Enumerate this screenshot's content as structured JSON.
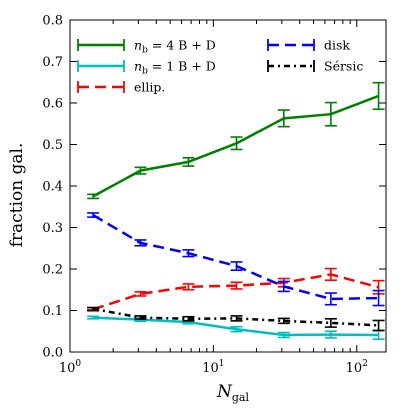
{
  "chart_data": {
    "type": "line",
    "ylabel": "fraction gal.",
    "xlabel": "N",
    "xlabel_sub": "gal",
    "xscale": "log",
    "xlim": [
      1,
      160
    ],
    "ylim": [
      0.0,
      0.8
    ],
    "xticks": [
      {
        "value": 1,
        "base": "10",
        "exp": "0"
      },
      {
        "value": 10,
        "base": "10",
        "exp": "1"
      },
      {
        "value": 100,
        "base": "10",
        "exp": "2"
      }
    ],
    "yticks": [
      "0.0",
      "0.1",
      "0.2",
      "0.3",
      "0.4",
      "0.5",
      "0.6",
      "0.7",
      "0.8"
    ],
    "grid": false,
    "legend_position": "top",
    "x": [
      1.45,
      3.1,
      6.7,
      14.5,
      31,
      66,
      142
    ],
    "series": [
      {
        "name": "n_b = 4 B+D",
        "legend_main": "n",
        "legend_sub": "b",
        "legend_rest": " = 4 B + D",
        "color": "#008000",
        "dash": "solid",
        "values": [
          0.375,
          0.437,
          0.458,
          0.503,
          0.563,
          0.573,
          0.617
        ],
        "errors": [
          0.005,
          0.008,
          0.01,
          0.015,
          0.02,
          0.028,
          0.032
        ]
      },
      {
        "name": "n_b = 1 B+D",
        "legend_main": "n",
        "legend_sub": "b",
        "legend_rest": " = 1 B + D",
        "color": "#00bfbf",
        "dash": "solid",
        "values": [
          0.083,
          0.078,
          0.072,
          0.055,
          0.041,
          0.042,
          0.041
        ],
        "errors": [
          0.003,
          0.004,
          0.004,
          0.006,
          0.006,
          0.008,
          0.01
        ]
      },
      {
        "name": "ellip.",
        "legend_main": "ellip.",
        "legend_sub": "",
        "legend_rest": "",
        "color": "#ff0000",
        "dash": "dashed",
        "values": [
          0.103,
          0.14,
          0.157,
          0.16,
          0.167,
          0.187,
          0.156
        ],
        "errors": [
          0.004,
          0.005,
          0.007,
          0.008,
          0.01,
          0.014,
          0.016
        ]
      },
      {
        "name": "disk",
        "legend_main": "disk",
        "legend_sub": "",
        "legend_rest": "",
        "color": "#0000ff",
        "dash": "dashed",
        "values": [
          0.33,
          0.263,
          0.238,
          0.207,
          0.158,
          0.128,
          0.13
        ],
        "errors": [
          0.005,
          0.007,
          0.008,
          0.01,
          0.012,
          0.014,
          0.018
        ]
      },
      {
        "name": "Sérsic",
        "legend_main": "Sérsic",
        "legend_sub": "",
        "legend_rest": "",
        "color": "#000000",
        "dash": "dashdot",
        "values": [
          0.104,
          0.083,
          0.08,
          0.081,
          0.075,
          0.07,
          0.064
        ],
        "errors": [
          0.003,
          0.004,
          0.005,
          0.006,
          0.006,
          0.01,
          0.012
        ]
      }
    ]
  }
}
